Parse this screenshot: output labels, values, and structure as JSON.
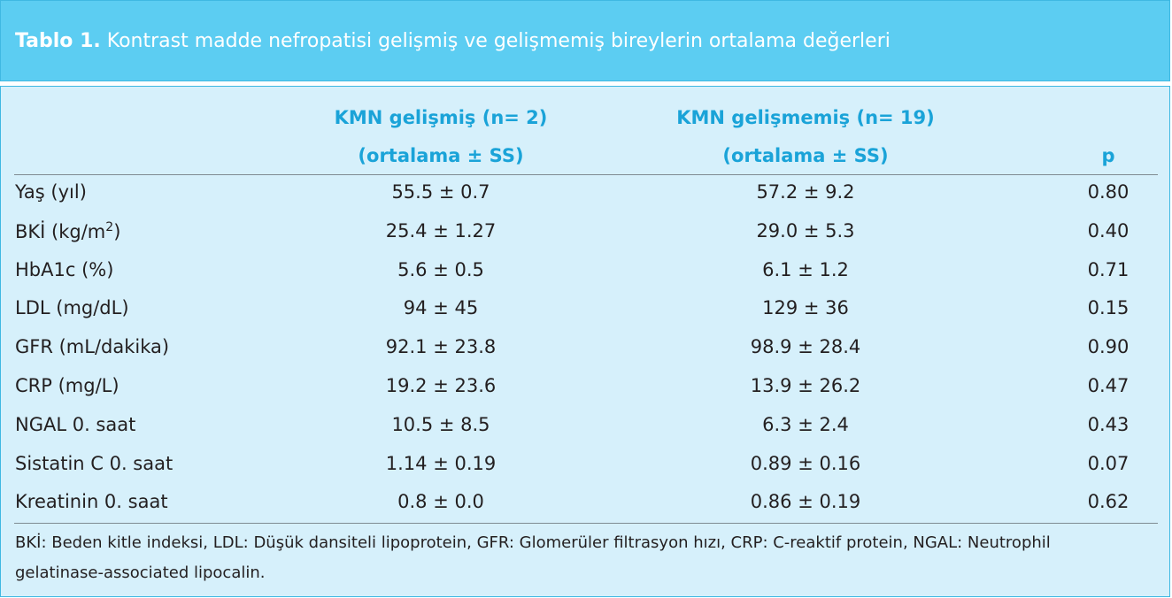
{
  "title": {
    "label": "Tablo 1.",
    "text": "Kontrast madde nefropatisi gelişmiş ve gelişmemiş bireylerin ortalama değerleri"
  },
  "header": {
    "col1_line1": "KMN gelişmiş (n= 2)",
    "col1_line2": "(ortalama ± SS)",
    "col2_line1": "KMN gelişmemiş (n= 19)",
    "col2_line2": "(ortalama ± SS)",
    "col3": "p"
  },
  "rows": [
    {
      "label": "Yaş (yıl)",
      "label_sup": "",
      "label_after": "",
      "col1": "55.5 ± 0.7",
      "col2": "57.2 ± 9.2",
      "p": "0.80"
    },
    {
      "label": "BKİ (kg/m",
      "label_sup": "2",
      "label_after": ")",
      "col1": "25.4 ± 1.27",
      "col2": "29.0 ± 5.3",
      "p": "0.40"
    },
    {
      "label": "HbA1c (%)",
      "label_sup": "",
      "label_after": "",
      "col1": "5.6 ± 0.5",
      "col2": "6.1 ± 1.2",
      "p": "0.71"
    },
    {
      "label": "LDL (mg/dL)",
      "label_sup": "",
      "label_after": "",
      "col1": "94 ± 45",
      "col2": "129 ± 36",
      "p": "0.15"
    },
    {
      "label": "GFR (mL/dakika)",
      "label_sup": "",
      "label_after": "",
      "col1": "92.1 ± 23.8",
      "col2": "98.9 ± 28.4",
      "p": "0.90"
    },
    {
      "label": "CRP (mg/L)",
      "label_sup": "",
      "label_after": "",
      "col1": "19.2 ± 23.6",
      "col2": "13.9 ± 26.2",
      "p": "0.47"
    },
    {
      "label": "NGAL 0. saat",
      "label_sup": "",
      "label_after": "",
      "col1": "10.5 ± 8.5",
      "col2": "6.3 ± 2.4",
      "p": "0.43"
    },
    {
      "label": "Sistatin C 0. saat",
      "label_sup": "",
      "label_after": "",
      "col1": "1.14 ± 0.19",
      "col2": "0.89 ± 0.16",
      "p": "0.07"
    },
    {
      "label": "Kreatinin 0. saat",
      "label_sup": "",
      "label_after": "",
      "col1": "0.8 ± 0.0",
      "col2": "0.86 ± 0.19",
      "p": "0.62"
    }
  ],
  "footnote": {
    "line1": "BKİ: Beden kitle indeksi, LDL: Düşük dansiteli lipoprotein, GFR: Glomerüler filtrasyon hızı, CRP: C-reaktif protein, NGAL: Neutrophil",
    "line2": "gelatinase-associated lipocalin."
  },
  "colors": {
    "title_bg": "#5ccdf2",
    "table_bg": "#d6f0fb",
    "header_text": "#1aa3d8"
  }
}
